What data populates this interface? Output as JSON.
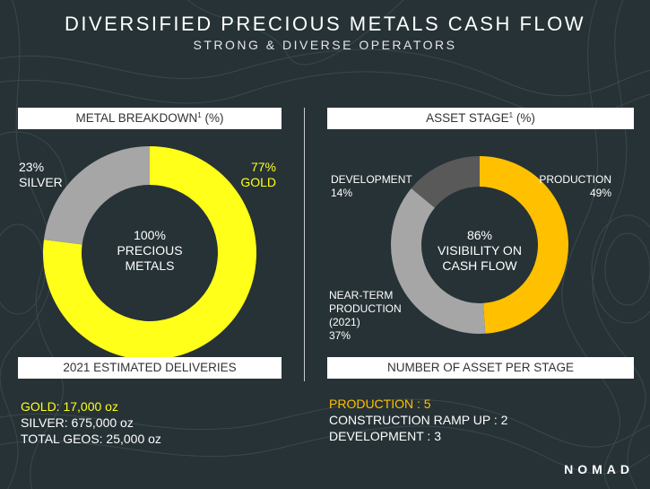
{
  "header": {
    "title": "DIVERSIFIED PRECIOUS METALS CASH FLOW",
    "subtitle": "STRONG & DIVERSE OPERATORS"
  },
  "left": {
    "bar_top": "METAL BREAKDOWN",
    "bar_top_sup": "1",
    "bar_top_suffix": " (%)",
    "label_silver_pct": "23%",
    "label_silver_name": "SILVER",
    "label_gold_pct": "77%",
    "label_gold_name": "GOLD",
    "center_line1": "100%",
    "center_line2": "PRECIOUS",
    "center_line3": "METALS",
    "bar_bottom": "2021 ESTIMATED DELIVERIES",
    "deliveries": [
      "GOLD: 17,000 oz",
      "SILVER: 675,000 oz",
      "TOTAL GEOS: 25,000 oz"
    ]
  },
  "right": {
    "bar_top": "ASSET STAGE",
    "bar_top_sup": "1",
    "bar_top_suffix": " (%)",
    "label_dev_name": "DEVELOPMENT",
    "label_dev_pct": "14%",
    "label_prod_name": "PRODUCTION",
    "label_prod_pct": "49%",
    "label_near_line1": "NEAR-TERM",
    "label_near_line2": "PRODUCTION",
    "label_near_line3": "(2021)",
    "label_near_pct": "37%",
    "center_line1": "86%",
    "center_line2": "VISIBILITY ON",
    "center_line3": "CASH FLOW",
    "bar_bottom": "NUMBER OF ASSET PER STAGE",
    "stages": [
      "PRODUCTION : 5",
      "CONSTRUCTION RAMP UP : 2",
      "DEVELOPMENT : 3"
    ]
  },
  "brand": {
    "logo": "NOMAD"
  },
  "colors": {
    "background": "#263236",
    "gold": "#ffff1a",
    "silver": "#a6a6a6",
    "production": "#ffc000",
    "near_term": "#a6a6a6",
    "development": "#595959"
  },
  "chart_data": [
    {
      "type": "pie",
      "title": "METAL BREAKDOWN1 (%)",
      "categories": [
        "GOLD",
        "SILVER"
      ],
      "values": [
        77,
        23
      ],
      "colors": [
        "#ffff1a",
        "#a6a6a6"
      ]
    },
    {
      "type": "pie",
      "title": "ASSET STAGE1 (%)",
      "categories": [
        "PRODUCTION",
        "NEAR-TERM PRODUCTION (2021)",
        "DEVELOPMENT"
      ],
      "values": [
        49,
        37,
        14
      ],
      "colors": [
        "#ffc000",
        "#a6a6a6",
        "#595959"
      ]
    }
  ]
}
